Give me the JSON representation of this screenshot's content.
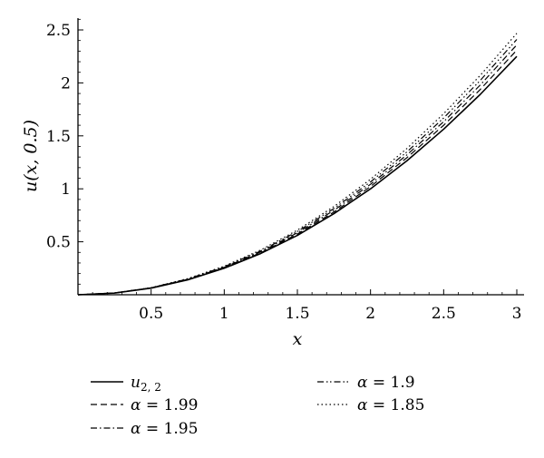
{
  "chart_data": {
    "type": "line",
    "xlabel": "x",
    "ylabel": "u(x, 0.5)",
    "xlim": [
      0,
      3
    ],
    "ylim": [
      0,
      2.5
    ],
    "xticks": [
      0.5,
      1,
      1.5,
      2,
      2.5,
      3
    ],
    "xtick_labels": [
      "0.5",
      "1",
      "1.5",
      "2",
      "2.5",
      "3"
    ],
    "yticks": [
      0.5,
      1,
      1.5,
      2,
      2.5
    ],
    "ytick_labels": [
      "0.5",
      "1",
      "1.5",
      "2",
      "2.5"
    ],
    "grid": false,
    "legend_position": "bottom",
    "x": [
      0,
      0.25,
      0.5,
      0.75,
      1,
      1.25,
      1.5,
      1.75,
      2,
      2.25,
      2.5,
      2.75,
      3
    ],
    "series": [
      {
        "name": "u2,2",
        "style": "solid",
        "values": [
          0,
          0.016,
          0.062,
          0.14,
          0.25,
          0.39,
          0.56,
          0.766,
          1.0,
          1.266,
          1.563,
          1.891,
          2.25
        ]
      },
      {
        "name": "α = 1.99",
        "style": "dashed",
        "values": [
          0,
          0.016,
          0.063,
          0.142,
          0.254,
          0.397,
          0.573,
          0.781,
          1.022,
          1.295,
          1.6,
          1.938,
          2.309
        ]
      },
      {
        "name": "α = 1.95",
        "style": "dashdot",
        "values": [
          0,
          0.017,
          0.065,
          0.146,
          0.259,
          0.405,
          0.585,
          0.797,
          1.043,
          1.322,
          1.634,
          1.98,
          2.359
        ]
      },
      {
        "name": "α = 1.9",
        "style": "dashdotdot",
        "values": [
          0,
          0.017,
          0.066,
          0.149,
          0.264,
          0.414,
          0.597,
          0.814,
          1.065,
          1.35,
          1.669,
          2.023,
          2.41
        ]
      },
      {
        "name": "α = 1.85",
        "style": "dotted",
        "values": [
          0,
          0.017,
          0.067,
          0.152,
          0.27,
          0.423,
          0.61,
          0.833,
          1.09,
          1.382,
          1.709,
          2.071,
          2.468
        ]
      }
    ]
  },
  "legend": [
    {
      "prefix": "u",
      "sub": "2, 2",
      "text": ""
    },
    {
      "prefix": "α",
      "sub": "",
      "text": " = 1.99"
    },
    {
      "prefix": "α",
      "sub": "",
      "text": " = 1.95"
    },
    {
      "prefix": "α",
      "sub": "",
      "text": " = 1.9"
    },
    {
      "prefix": "α",
      "sub": "",
      "text": " = 1.85"
    }
  ]
}
